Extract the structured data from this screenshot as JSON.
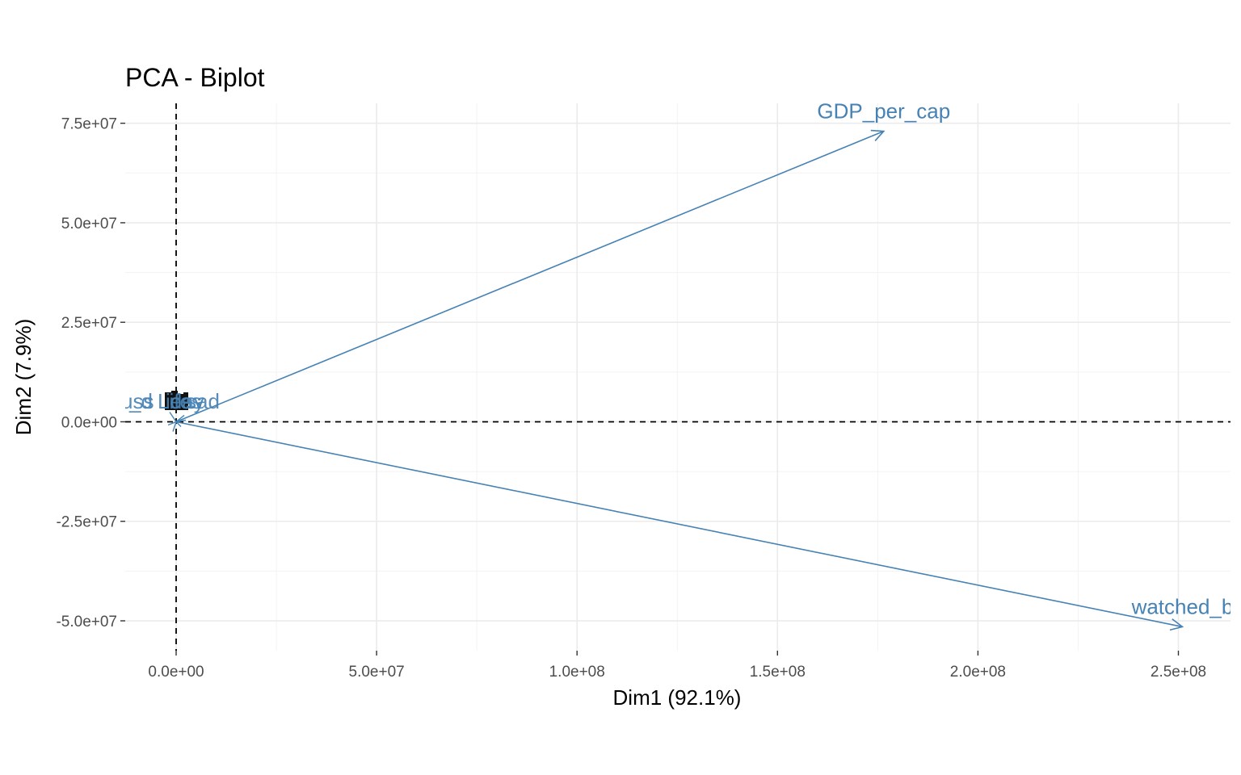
{
  "chart_data": {
    "type": "biplot",
    "title": "PCA - Biplot",
    "xlabel": "Dim1 (92.1%)",
    "ylabel": "Dim2 (7.9%)",
    "xlim": [
      -12700000,
      263000000
    ],
    "ylim": [
      -57500000,
      80000000
    ],
    "x_ticks": [
      0,
      50000000,
      100000000,
      150000000,
      200000000,
      250000000
    ],
    "x_tick_labels": [
      "0.0e+00",
      "5.0e+07",
      "1.0e+08",
      "1.5e+08",
      "2.0e+08",
      "2.5e+08"
    ],
    "y_ticks": [
      -50000000,
      -25000000,
      0,
      25000000,
      50000000,
      75000000
    ],
    "y_tick_labels": [
      "-5.0e+07",
      "-2.5e+07",
      "0.0e+00",
      "2.5e+07",
      "5.0e+07",
      "7.5e+07"
    ],
    "grid": true,
    "arrow_color": "#4682B4",
    "variables": [
      {
        "label": "GDP_per_cap",
        "x": 176500000,
        "y": 73000000
      },
      {
        "label": "watched_b",
        "x": 251000000,
        "y": -51500000
      }
    ],
    "cluster_labels": [
      "sad",
      "_d",
      "uss",
      "iday",
      "Lifes",
      "es"
    ]
  }
}
